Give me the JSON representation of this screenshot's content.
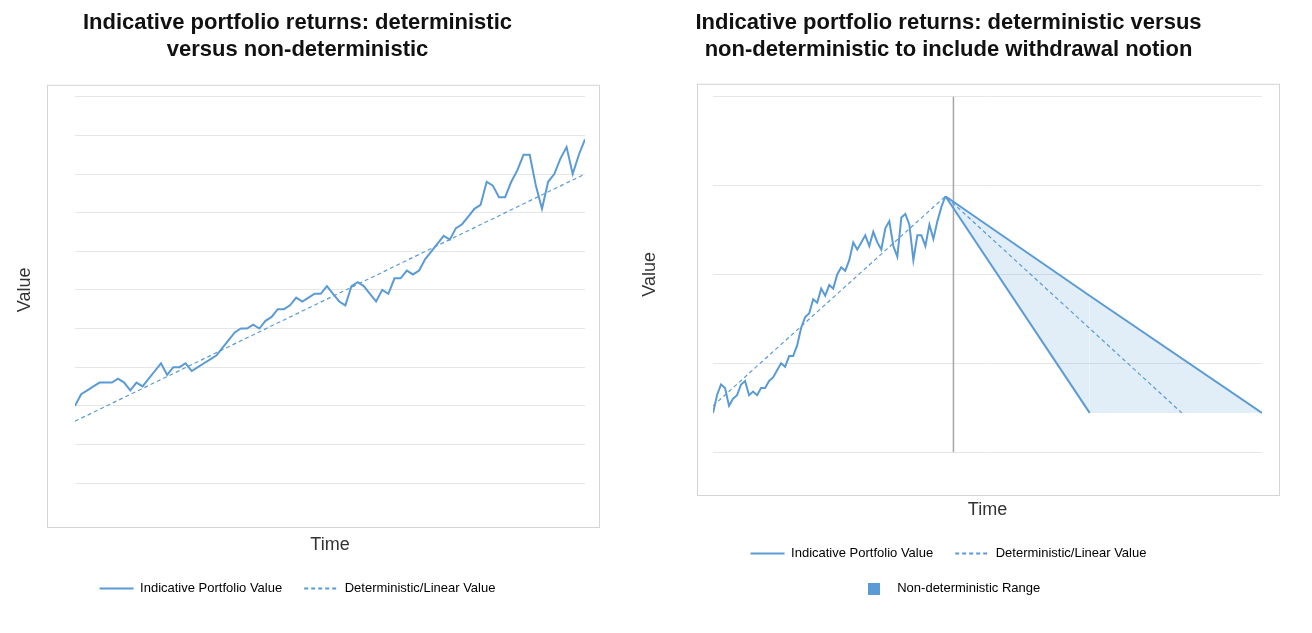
{
  "chart_data": [
    {
      "type": "line",
      "title": [
        "Indicative portfolio returns: deterministic",
        "versus non-deterministic"
      ],
      "x_label": "Time",
      "y_label": "Value",
      "xlim": [
        0,
        83
      ],
      "xticks": [
        0,
        83
      ],
      "ylim": [
        0,
        100
      ],
      "yticks": [
        0,
        10,
        20,
        30,
        40,
        50,
        60,
        70,
        80,
        90,
        100
      ],
      "grid": "y",
      "tick_labels": false,
      "legend": "bottom",
      "series": [
        {
          "name": "Indicative Portfolio Value",
          "color": "#5b9bd5",
          "line_style": "solid",
          "x": [
            0,
            1,
            2,
            3,
            4,
            5,
            6,
            7,
            8,
            9,
            10,
            11,
            12,
            13,
            14,
            15,
            16,
            17,
            18,
            19,
            20,
            21,
            22,
            23,
            24,
            25,
            26,
            27,
            28,
            29,
            30,
            31,
            32,
            33,
            34,
            35,
            36,
            37,
            38,
            39,
            40,
            41,
            42,
            43,
            44,
            45,
            46,
            47,
            48,
            49,
            50,
            51,
            52,
            53,
            54,
            55,
            56,
            57,
            58,
            59,
            60,
            61,
            62,
            63,
            64,
            65,
            66,
            67,
            68,
            69,
            70,
            71,
            72,
            73,
            74,
            75,
            76,
            77,
            78,
            79,
            80,
            81,
            82,
            83
          ],
          "values": [
            20,
            23,
            24,
            25,
            26,
            26,
            26,
            27,
            26,
            24,
            26,
            25,
            27,
            29,
            31,
            28,
            30,
            30,
            31,
            29,
            30,
            31,
            32,
            33,
            35,
            37,
            39,
            40,
            40,
            41,
            40,
            42,
            43,
            45,
            45,
            46,
            48,
            47,
            48,
            49,
            49,
            51,
            49,
            47,
            46,
            51,
            52,
            51,
            49,
            47,
            50,
            49,
            53,
            53,
            55,
            54,
            55,
            58,
            60,
            62,
            64,
            63,
            66,
            67,
            69,
            71,
            72,
            78,
            77,
            74,
            74,
            78,
            81,
            85,
            85,
            77,
            71,
            78,
            80,
            84,
            87,
            80,
            85,
            89
          ]
        },
        {
          "name": "Deterministic/Linear Value",
          "color": "#5b9bd5",
          "line_style": "dashed",
          "x": [
            0,
            83
          ],
          "values": [
            16,
            80
          ]
        }
      ]
    },
    {
      "type": "line",
      "title": [
        "Indicative portfolio returns: deterministic versus",
        "non-deterministic to include withdrawal notion"
      ],
      "x_label": "Time",
      "y_label": "Value",
      "xlim": [
        0,
        137
      ],
      "xticks": [
        0,
        137
      ],
      "ylim": [
        0,
        100
      ],
      "yticks": [
        0,
        25,
        50,
        75,
        100
      ],
      "grid": "y",
      "tick_labels": false,
      "legend": "bottom",
      "x_marker": 60,
      "series": [
        {
          "name": "Indicative Portfolio Value",
          "color": "#5b9bd5",
          "line_style": "solid",
          "x": [
            0,
            1,
            2,
            3,
            4,
            5,
            6,
            7,
            8,
            9,
            10,
            11,
            12,
            13,
            14,
            15,
            16,
            17,
            18,
            19,
            20,
            21,
            22,
            23,
            24,
            25,
            26,
            27,
            28,
            29,
            30,
            31,
            32,
            33,
            34,
            35,
            36,
            37,
            38,
            39,
            40,
            41,
            42,
            43,
            44,
            45,
            46,
            47,
            48,
            49,
            50,
            51,
            52,
            53,
            54,
            55,
            56,
            57,
            58
          ],
          "values": [
            11,
            16,
            19,
            18,
            13,
            15,
            16,
            19,
            20,
            16,
            17,
            16,
            18,
            18,
            20,
            21,
            23,
            25,
            24,
            27,
            27,
            30,
            35,
            38,
            39,
            43,
            42,
            46,
            44,
            47,
            46,
            50,
            52,
            51,
            54,
            59,
            57,
            59,
            61,
            58,
            62,
            59,
            57,
            63,
            65,
            58,
            55,
            66,
            67,
            64,
            54,
            61,
            61,
            58,
            64,
            60,
            65,
            69,
            72
          ]
        },
        {
          "name": "Deterministic/Linear Value",
          "color": "#5b9bd5",
          "line_style": "dashed",
          "x": [
            0,
            58,
            117
          ],
          "values": [
            13,
            72,
            11
          ]
        },
        {
          "name": "Non-deterministic Range",
          "type": "range",
          "color": "#5b9bd5",
          "x": [
            58,
            94,
            137
          ],
          "lower": [
            72,
            11,
            11
          ],
          "upper": [
            72,
            44,
            11
          ]
        }
      ]
    }
  ]
}
